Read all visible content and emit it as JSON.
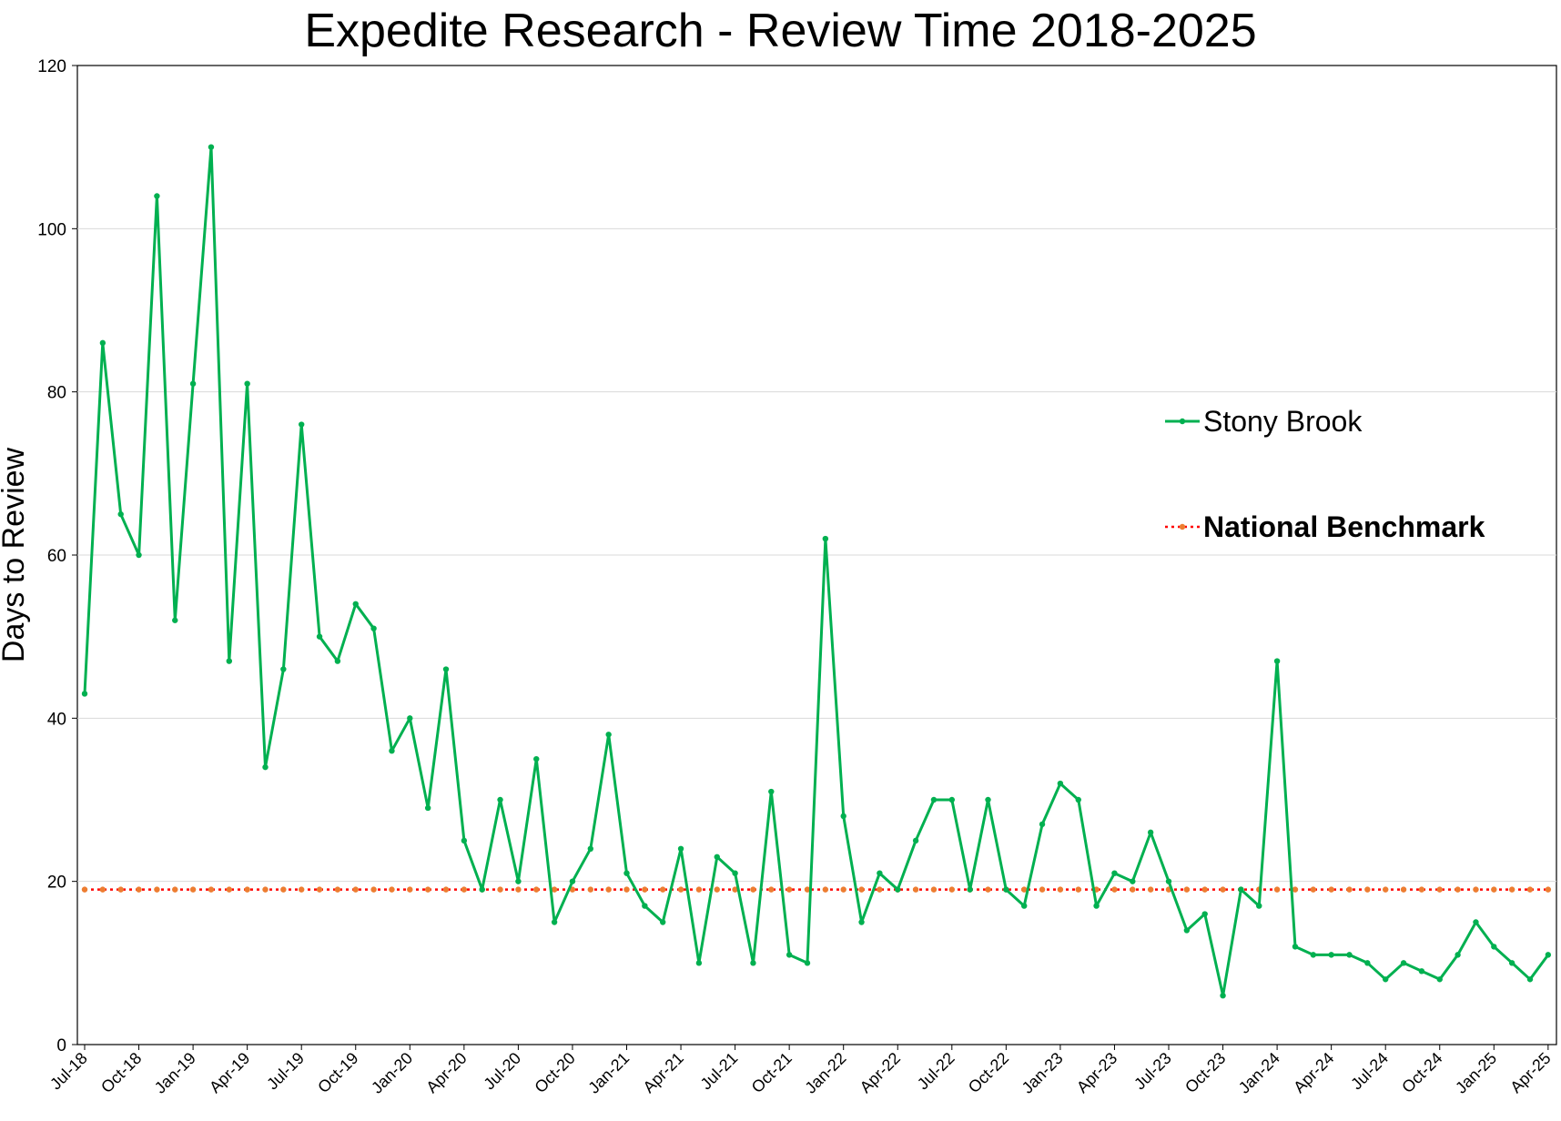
{
  "chart_data": {
    "type": "line",
    "title": "Expedite Research - Review Time 2018-2025",
    "xlabel": "",
    "ylabel": "Days to Review",
    "ylim": [
      0,
      120
    ],
    "yticks": [
      "0",
      "20",
      "40",
      "60",
      "80",
      "100",
      "120"
    ],
    "x_tick_labels": [
      "Jul-18",
      "Oct-18",
      "Jan-19",
      "Apr-19",
      "Jul-19",
      "Oct-19",
      "Jan-20",
      "Apr-20",
      "Jul-20",
      "Oct-20",
      "Jan-21",
      "Apr-21",
      "Jul-21",
      "Oct-21",
      "Jan-22",
      "Apr-22",
      "Jul-22",
      "Oct-22",
      "Jan-23",
      "Apr-23",
      "Jul-23",
      "Oct-23",
      "Jan-24",
      "Apr-24",
      "Jul-24",
      "Oct-24",
      "Jan-25",
      "Apr-25"
    ],
    "x_start": "Jul-18",
    "x_end": "Apr-25",
    "grid": "horizontal",
    "legend_position": "right",
    "series": [
      {
        "name": "Stony Brook",
        "color": "#00b050",
        "values": [
          43,
          86,
          65,
          60,
          104,
          52,
          81,
          110,
          47,
          81,
          34,
          46,
          76,
          50,
          47,
          54,
          51,
          36,
          40,
          29,
          46,
          25,
          19,
          30,
          20,
          35,
          15,
          20,
          24,
          38,
          21,
          17,
          15,
          24,
          10,
          23,
          21,
          10,
          31,
          11,
          10,
          62,
          28,
          15,
          21,
          19,
          25,
          30,
          30,
          19,
          30,
          19,
          17,
          27,
          32,
          30,
          17,
          21,
          20,
          26,
          20,
          14,
          16,
          6,
          19,
          17,
          47,
          12,
          11,
          11,
          11,
          10,
          8,
          10,
          9,
          8,
          11,
          15,
          12,
          10,
          8,
          11
        ]
      },
      {
        "name": "National Benchmark",
        "color": "#ff0000",
        "marker_color": "#ed7d31",
        "line_style": "dotted",
        "constant_value": 19
      }
    ]
  }
}
